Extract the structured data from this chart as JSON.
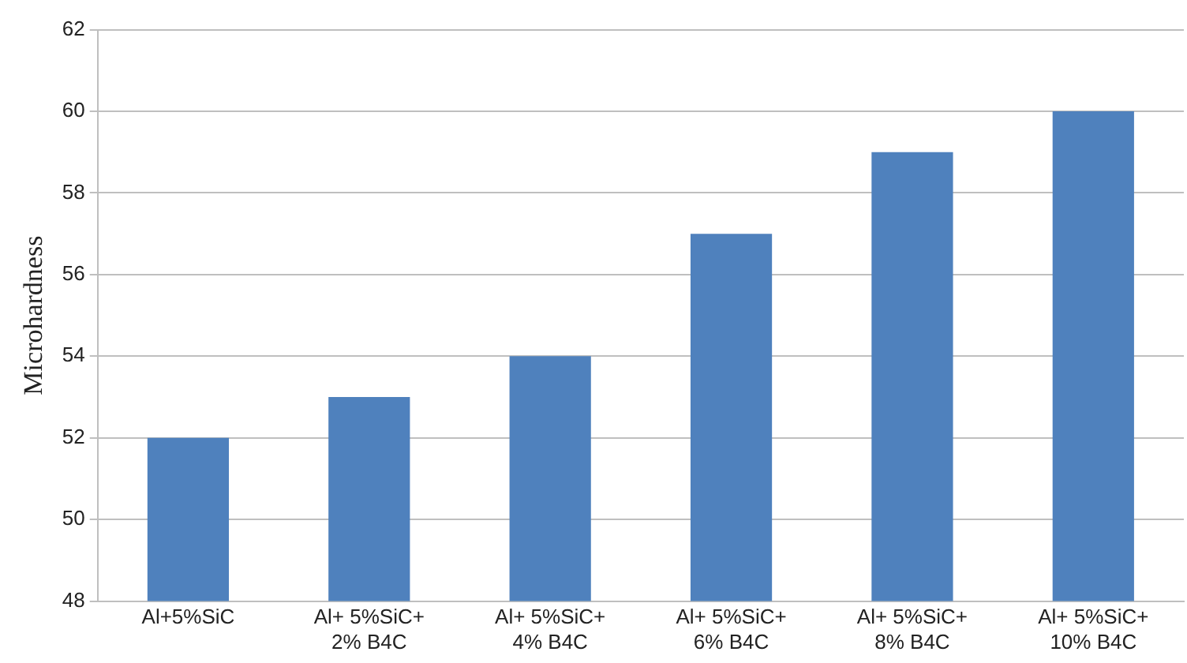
{
  "chart_data": {
    "type": "bar",
    "ylabel": "Microhardness",
    "categories": [
      "Al+5%SiC",
      "Al+ 5%SiC+\n2% B4C",
      "Al+ 5%SiC+\n4% B4C",
      "Al+ 5%SiC+\n6% B4C",
      "Al+ 5%SiC+\n8% B4C",
      "Al+ 5%SiC+\n10% B4C"
    ],
    "values": [
      52,
      53,
      54,
      57,
      59,
      60
    ],
    "color": "#4f81bd",
    "ylim": [
      48,
      62
    ],
    "yticks": [
      48,
      50,
      52,
      54,
      56,
      58,
      60,
      62
    ],
    "grid": "y",
    "legend": false
  }
}
